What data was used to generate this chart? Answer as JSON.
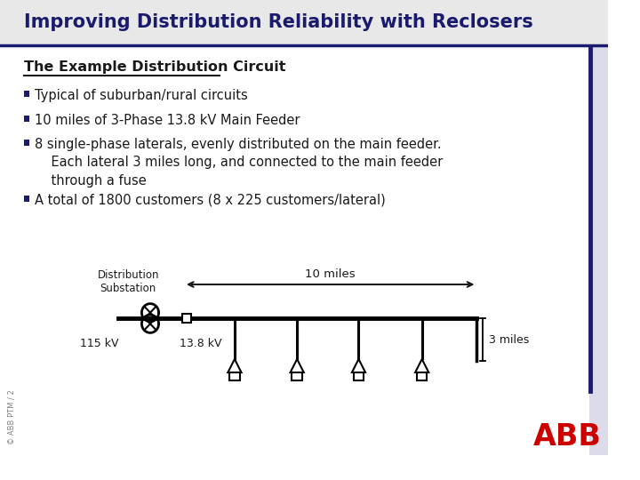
{
  "title": "Improving Distribution Reliability with Reclosers",
  "section_title": "The Example Distribution Circuit",
  "bullets": [
    "Typical of suburban/rural circuits",
    "10 miles of 3-Phase 13.8 kV Main Feeder",
    "8 single-phase laterals, evenly distributed on the main feeder.\n    Each lateral 3 miles long, and connected to the main feeder\n    through a fuse",
    "A total of 1800 customers (8 x 225 customers/lateral)"
  ],
  "bg_color": "#e8e8e8",
  "body_bg": "#ffffff",
  "title_color": "#1a1a6e",
  "text_color": "#1a1a1a",
  "bullet_color": "#1a1a6e",
  "accent_line_color": "#1a1a6e",
  "abb_color": "#cc0000",
  "diagram_label_substation": "Distribution\nSubstation",
  "diagram_label_10miles": "10 miles",
  "diagram_label_3miles": "3 miles",
  "diagram_label_115kv": "115 kV",
  "diagram_label_138kv": "13.8 kV",
  "watermark": "© ABB PTM / 2"
}
